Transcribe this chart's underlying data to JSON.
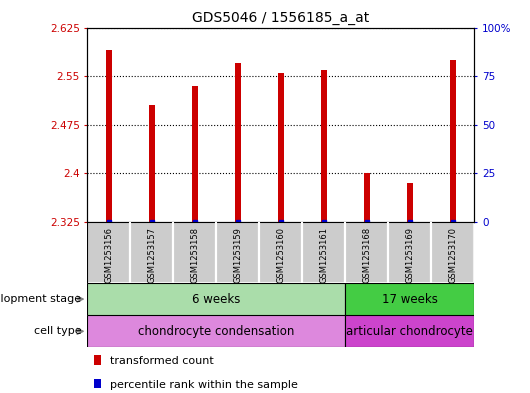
{
  "title": "GDS5046 / 1556185_a_at",
  "samples": [
    "GSM1253156",
    "GSM1253157",
    "GSM1253158",
    "GSM1253159",
    "GSM1253160",
    "GSM1253161",
    "GSM1253168",
    "GSM1253169",
    "GSM1253170"
  ],
  "transformed_counts": [
    2.59,
    2.505,
    2.535,
    2.57,
    2.555,
    2.56,
    2.4,
    2.385,
    2.575
  ],
  "percentile_ranks": [
    0,
    0,
    0,
    0,
    0,
    0,
    0,
    0,
    0
  ],
  "ylim_left": [
    2.325,
    2.625
  ],
  "ylim_right": [
    0,
    100
  ],
  "yticks_left": [
    2.325,
    2.4,
    2.475,
    2.55,
    2.625
  ],
  "yticks_right": [
    0,
    25,
    50,
    75,
    100
  ],
  "ytick_labels_right": [
    "0",
    "25",
    "50",
    "75",
    "100%"
  ],
  "bar_color": "#cc0000",
  "percentile_color": "#0000cc",
  "dev_stage_groups": [
    {
      "label": "6 weeks",
      "start": 0,
      "end": 6,
      "color": "#aaddaa"
    },
    {
      "label": "17 weeks",
      "start": 6,
      "end": 9,
      "color": "#44cc44"
    }
  ],
  "cell_type_groups": [
    {
      "label": "chondrocyte condensation",
      "start": 0,
      "end": 6,
      "color": "#dd88dd"
    },
    {
      "label": "articular chondrocyte",
      "start": 6,
      "end": 9,
      "color": "#cc44cc"
    }
  ],
  "dev_stage_label": "development stage",
  "cell_type_label": "cell type",
  "legend_items": [
    {
      "color": "#cc0000",
      "label": "transformed count"
    },
    {
      "color": "#0000cc",
      "label": "percentile rank within the sample"
    }
  ],
  "bar_width": 0.15,
  "baseline": 2.325
}
